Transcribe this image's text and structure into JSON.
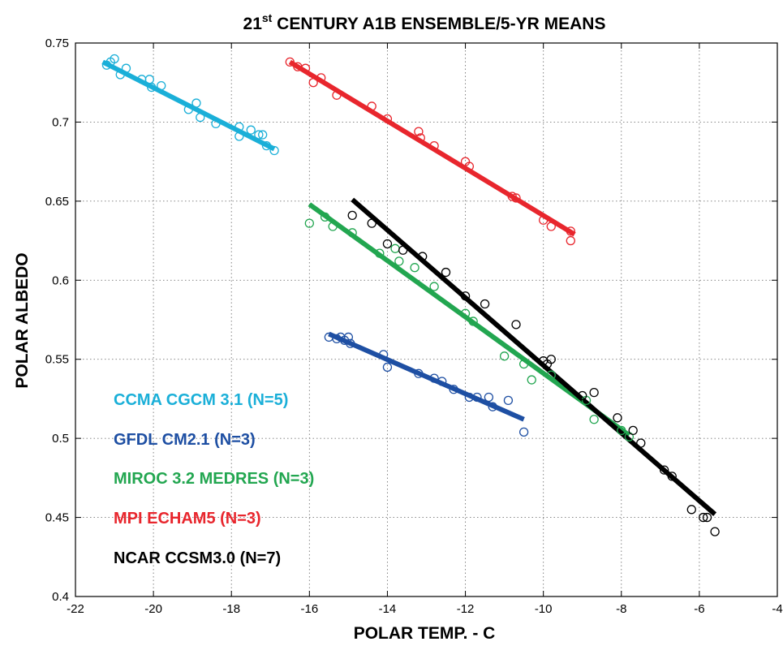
{
  "chart_data": {
    "type": "scatter",
    "title_main": "21",
    "title_sup": "st",
    "title_rest": " CENTURY A1B ENSEMBLE/5-YR MEANS",
    "xlabel": "POLAR TEMP. - C",
    "ylabel": "POLAR ALBEDO",
    "xlim": [
      -22,
      -4
    ],
    "ylim": [
      0.4,
      0.75
    ],
    "xticks": [
      -22,
      -20,
      -18,
      -16,
      -14,
      -12,
      -10,
      -8,
      -6,
      -4
    ],
    "xtick_labels": [
      "-22",
      "-20",
      "-18",
      "-16",
      "-14",
      "-12",
      "-10",
      "-8",
      "-6",
      "-4"
    ],
    "yticks": [
      0.4,
      0.45,
      0.5,
      0.55,
      0.6,
      0.65,
      0.7,
      0.75
    ],
    "ytick_labels": [
      "0.4",
      "0.45",
      "0.5",
      "0.55",
      "0.6",
      "0.65",
      "0.7",
      "0.75"
    ],
    "grid": true,
    "legend_position": "left",
    "series": [
      {
        "name": "CCMA CGCM 3.1 (N=5)",
        "color": "#1aafd8",
        "fit": [
          [
            -21.3,
            0.738
          ],
          [
            -16.9,
            0.683
          ]
        ],
        "points": [
          [
            -21.2,
            0.736
          ],
          [
            -21.1,
            0.738
          ],
          [
            -21.0,
            0.74
          ],
          [
            -20.85,
            0.73
          ],
          [
            -20.7,
            0.734
          ],
          [
            -20.3,
            0.727
          ],
          [
            -20.1,
            0.727
          ],
          [
            -20.05,
            0.722
          ],
          [
            -19.8,
            0.723
          ],
          [
            -19.1,
            0.708
          ],
          [
            -18.9,
            0.712
          ],
          [
            -18.8,
            0.703
          ],
          [
            -18.4,
            0.699
          ],
          [
            -17.8,
            0.697
          ],
          [
            -17.5,
            0.695
          ],
          [
            -17.3,
            0.692
          ],
          [
            -17.2,
            0.692
          ],
          [
            -17.1,
            0.685
          ],
          [
            -17.8,
            0.691
          ],
          [
            -16.9,
            0.682
          ]
        ]
      },
      {
        "name": "GFDL CM2.1 (N=3)",
        "color": "#1e4fa3",
        "fit": [
          [
            -15.5,
            0.566
          ],
          [
            -10.5,
            0.512
          ]
        ],
        "points": [
          [
            -15.5,
            0.564
          ],
          [
            -15.3,
            0.563
          ],
          [
            -15.2,
            0.564
          ],
          [
            -15.1,
            0.562
          ],
          [
            -15.0,
            0.564
          ],
          [
            -14.95,
            0.56
          ],
          [
            -14.1,
            0.553
          ],
          [
            -14.0,
            0.545
          ],
          [
            -13.2,
            0.541
          ],
          [
            -12.8,
            0.538
          ],
          [
            -12.6,
            0.536
          ],
          [
            -12.3,
            0.531
          ],
          [
            -11.9,
            0.526
          ],
          [
            -11.7,
            0.526
          ],
          [
            -11.4,
            0.526
          ],
          [
            -11.3,
            0.52
          ],
          [
            -10.9,
            0.524
          ],
          [
            -10.5,
            0.504
          ]
        ]
      },
      {
        "name": "MIROC 3.2 MEDRES (N=3)",
        "color": "#22a650",
        "fit": [
          [
            -16.0,
            0.648
          ],
          [
            -7.8,
            0.502
          ]
        ],
        "points": [
          [
            -16.0,
            0.636
          ],
          [
            -15.6,
            0.64
          ],
          [
            -15.4,
            0.634
          ],
          [
            -14.9,
            0.63
          ],
          [
            -14.2,
            0.617
          ],
          [
            -13.8,
            0.62
          ],
          [
            -13.7,
            0.612
          ],
          [
            -13.3,
            0.608
          ],
          [
            -12.8,
            0.596
          ],
          [
            -12.0,
            0.579
          ],
          [
            -11.8,
            0.574
          ],
          [
            -11.0,
            0.552
          ],
          [
            -10.5,
            0.547
          ],
          [
            -10.3,
            0.537
          ],
          [
            -9.8,
            0.54
          ],
          [
            -8.9,
            0.524
          ],
          [
            -8.7,
            0.512
          ],
          [
            -8.0,
            0.505
          ],
          [
            -7.8,
            0.501
          ]
        ]
      },
      {
        "name": "MPI ECHAM5 (N=3)",
        "color": "#e8262d",
        "fit": [
          [
            -16.5,
            0.738
          ],
          [
            -9.2,
            0.629
          ]
        ],
        "points": [
          [
            -16.5,
            0.738
          ],
          [
            -16.3,
            0.735
          ],
          [
            -16.1,
            0.734
          ],
          [
            -15.9,
            0.725
          ],
          [
            -15.7,
            0.728
          ],
          [
            -15.3,
            0.717
          ],
          [
            -14.4,
            0.71
          ],
          [
            -14.0,
            0.702
          ],
          [
            -13.2,
            0.694
          ],
          [
            -13.15,
            0.69
          ],
          [
            -12.8,
            0.685
          ],
          [
            -12.0,
            0.675
          ],
          [
            -11.9,
            0.672
          ],
          [
            -10.8,
            0.653
          ],
          [
            -10.7,
            0.652
          ],
          [
            -10.0,
            0.638
          ],
          [
            -9.8,
            0.634
          ],
          [
            -9.3,
            0.631
          ],
          [
            -9.3,
            0.625
          ]
        ]
      },
      {
        "name": "NCAR CCSM3.0 (N=7)",
        "color": "#000000",
        "fit": [
          [
            -14.9,
            0.651
          ],
          [
            -5.6,
            0.452
          ]
        ],
        "points": [
          [
            -14.9,
            0.641
          ],
          [
            -14.4,
            0.636
          ],
          [
            -14.0,
            0.623
          ],
          [
            -13.6,
            0.619
          ],
          [
            -13.1,
            0.615
          ],
          [
            -12.5,
            0.605
          ],
          [
            -12.0,
            0.59
          ],
          [
            -11.5,
            0.585
          ],
          [
            -10.7,
            0.572
          ],
          [
            -10.0,
            0.549
          ],
          [
            -9.9,
            0.547
          ],
          [
            -9.8,
            0.55
          ],
          [
            -9.0,
            0.527
          ],
          [
            -8.7,
            0.529
          ],
          [
            -8.1,
            0.513
          ],
          [
            -7.7,
            0.505
          ],
          [
            -7.5,
            0.497
          ],
          [
            -6.9,
            0.48
          ],
          [
            -6.7,
            0.476
          ],
          [
            -6.2,
            0.455
          ],
          [
            -5.9,
            0.45
          ],
          [
            -5.8,
            0.45
          ],
          [
            -5.6,
            0.441
          ]
        ]
      }
    ]
  }
}
